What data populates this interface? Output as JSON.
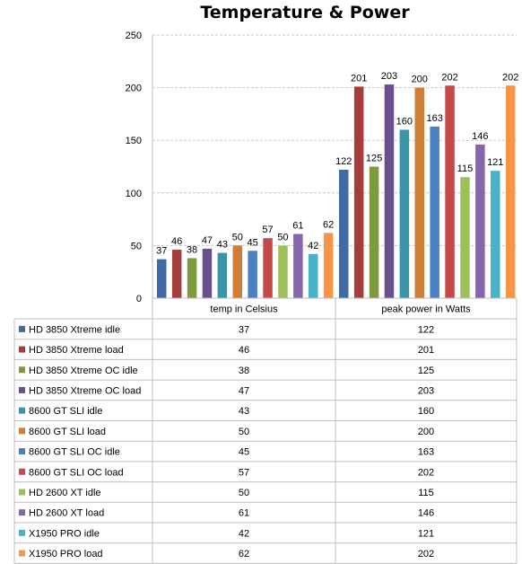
{
  "chart_data": {
    "type": "bar",
    "title": "Temperature & Power",
    "categories": [
      "temp in Celsius",
      "peak power in Watts"
    ],
    "ylim": [
      0,
      250
    ],
    "yticks": [
      0,
      50,
      100,
      150,
      200,
      250
    ],
    "grid": true,
    "legend_placement": "table-left",
    "series": [
      {
        "name": "HD 3850 Xtreme idle",
        "color": "#3f6aa5",
        "values": [
          37,
          122
        ]
      },
      {
        "name": "HD 3850 Xtreme load",
        "color": "#a33e3c",
        "values": [
          46,
          201
        ]
      },
      {
        "name": "HD 3850 Xtreme OC idle",
        "color": "#7f9a3e",
        "values": [
          38,
          125
        ]
      },
      {
        "name": "HD 3850 Xtreme OC load",
        "color": "#694f8e",
        "values": [
          47,
          203
        ]
      },
      {
        "name": "8600 GT SLI idle",
        "color": "#3a95aa",
        "values": [
          43,
          160
        ]
      },
      {
        "name": "8600 GT SLI load",
        "color": "#d27d35",
        "values": [
          50,
          200
        ]
      },
      {
        "name": "8600 GT SLI OC idle",
        "color": "#4a7fc2",
        "values": [
          45,
          163
        ]
      },
      {
        "name": "8600 GT SLI OC load",
        "color": "#c44a4a",
        "values": [
          57,
          202
        ]
      },
      {
        "name": "HD 2600 XT idle",
        "color": "#9cc15a",
        "values": [
          50,
          115
        ]
      },
      {
        "name": "HD 2600 XT load",
        "color": "#8566ad",
        "values": [
          61,
          146
        ]
      },
      {
        "name": "X1950 PRO idle",
        "color": "#48b2c9",
        "values": [
          42,
          121
        ]
      },
      {
        "name": "X1950 PRO load",
        "color": "#f79646",
        "values": [
          62,
          202
        ]
      }
    ]
  }
}
